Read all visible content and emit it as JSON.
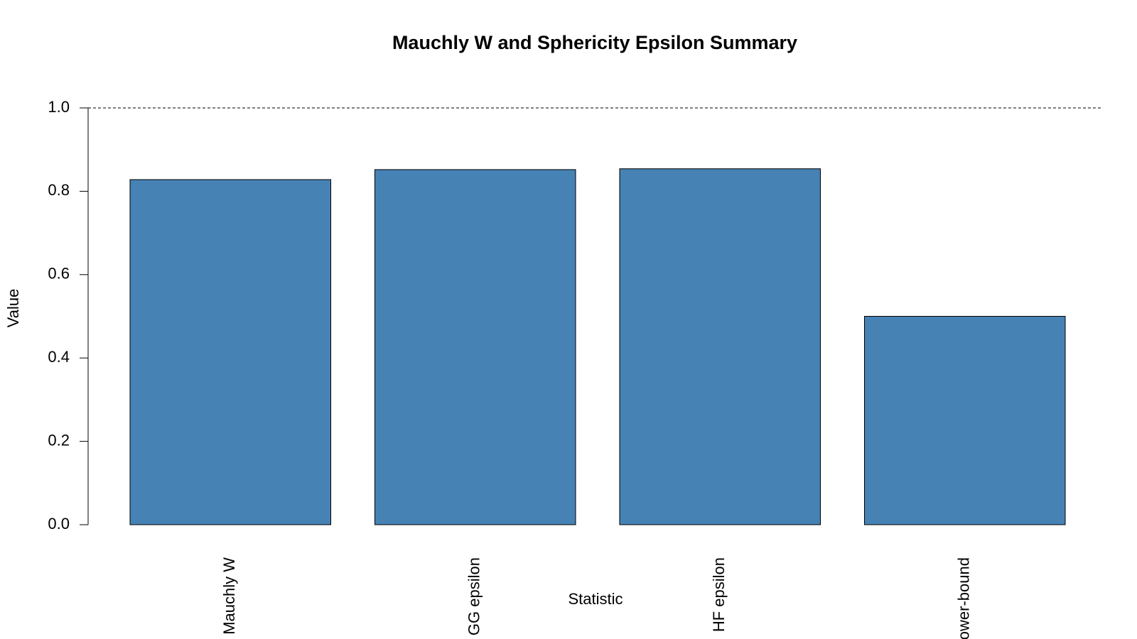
{
  "chart_data": {
    "type": "bar",
    "title": "Mauchly W and Sphericity Epsilon Summary",
    "x_label": "Statistic",
    "y_label": "Value",
    "categories": [
      "Mauchly W",
      "GG epsilon",
      "HF epsilon",
      "Lower-bound"
    ],
    "values": [
      0.828,
      0.852,
      0.854,
      0.5
    ],
    "color": "#4682b4",
    "ylim": [
      0,
      1
    ],
    "yticks": [
      {
        "value": 0,
        "label": "0.0"
      },
      0.2,
      0.4,
      0.6,
      0.8,
      {
        "value": 1,
        "label": "1.0"
      }
    ],
    "reference_line": 1
  }
}
